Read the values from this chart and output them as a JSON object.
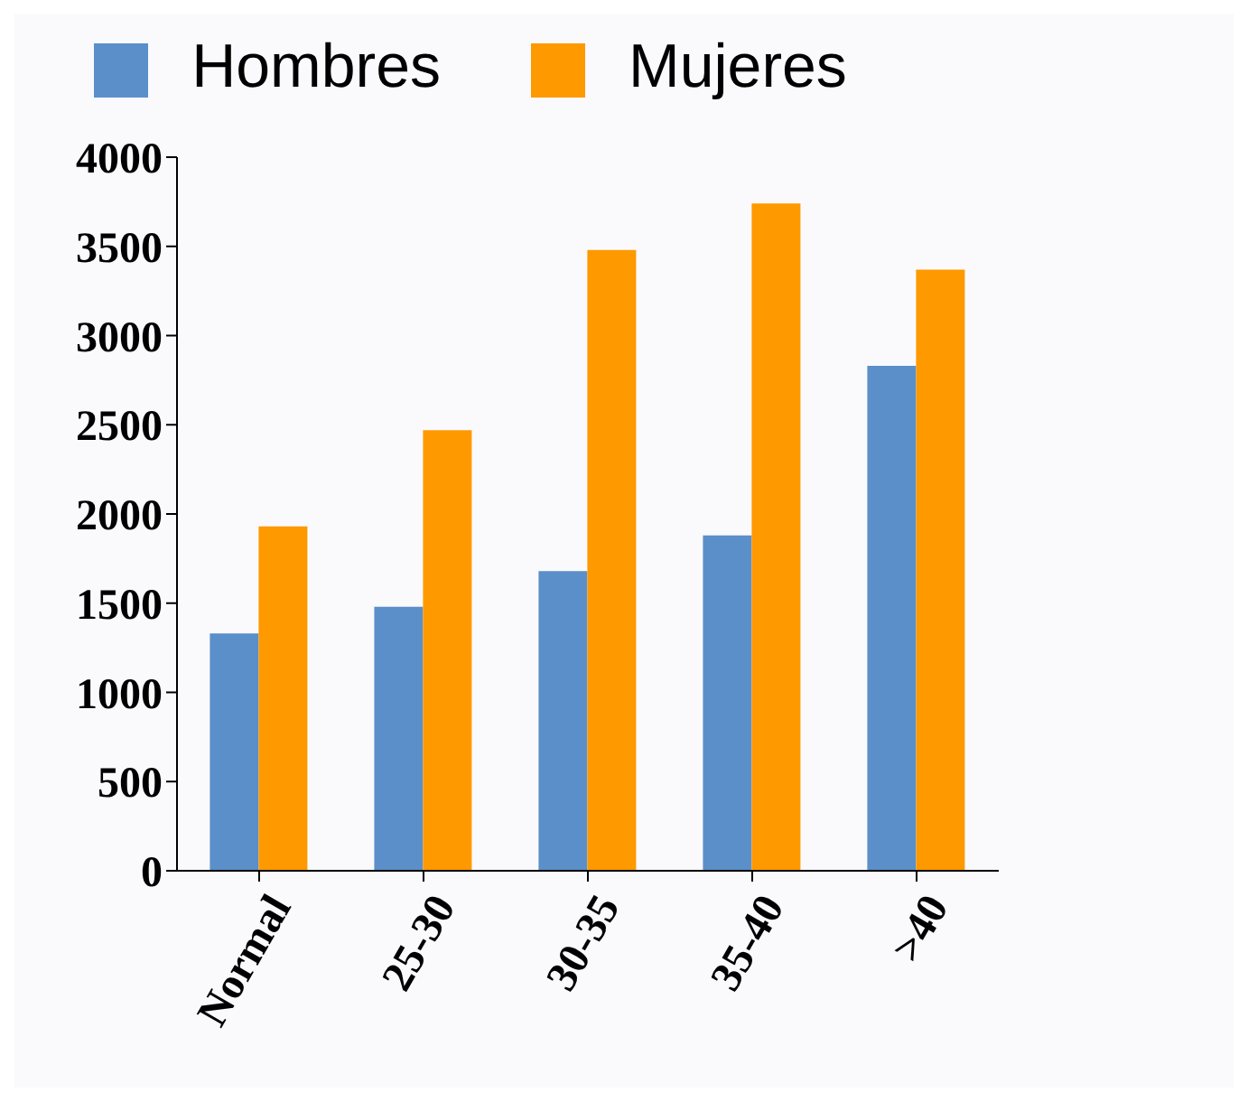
{
  "chart_data": {
    "type": "bar",
    "categories": [
      "Normal",
      "25-30",
      "30-35",
      "35-40",
      ">40"
    ],
    "series": [
      {
        "name": "Hombres",
        "color": "#5b8fc9",
        "values": [
          1330,
          1480,
          1680,
          1880,
          2830
        ]
      },
      {
        "name": "Mujeres",
        "color": "#ff9900",
        "values": [
          1930,
          2470,
          3480,
          3740,
          3370
        ]
      }
    ],
    "ylim": [
      0,
      4000
    ],
    "yticks": [
      0,
      500,
      1000,
      1500,
      2000,
      2500,
      3000,
      3500,
      4000
    ],
    "grid": false,
    "legend": "top"
  }
}
